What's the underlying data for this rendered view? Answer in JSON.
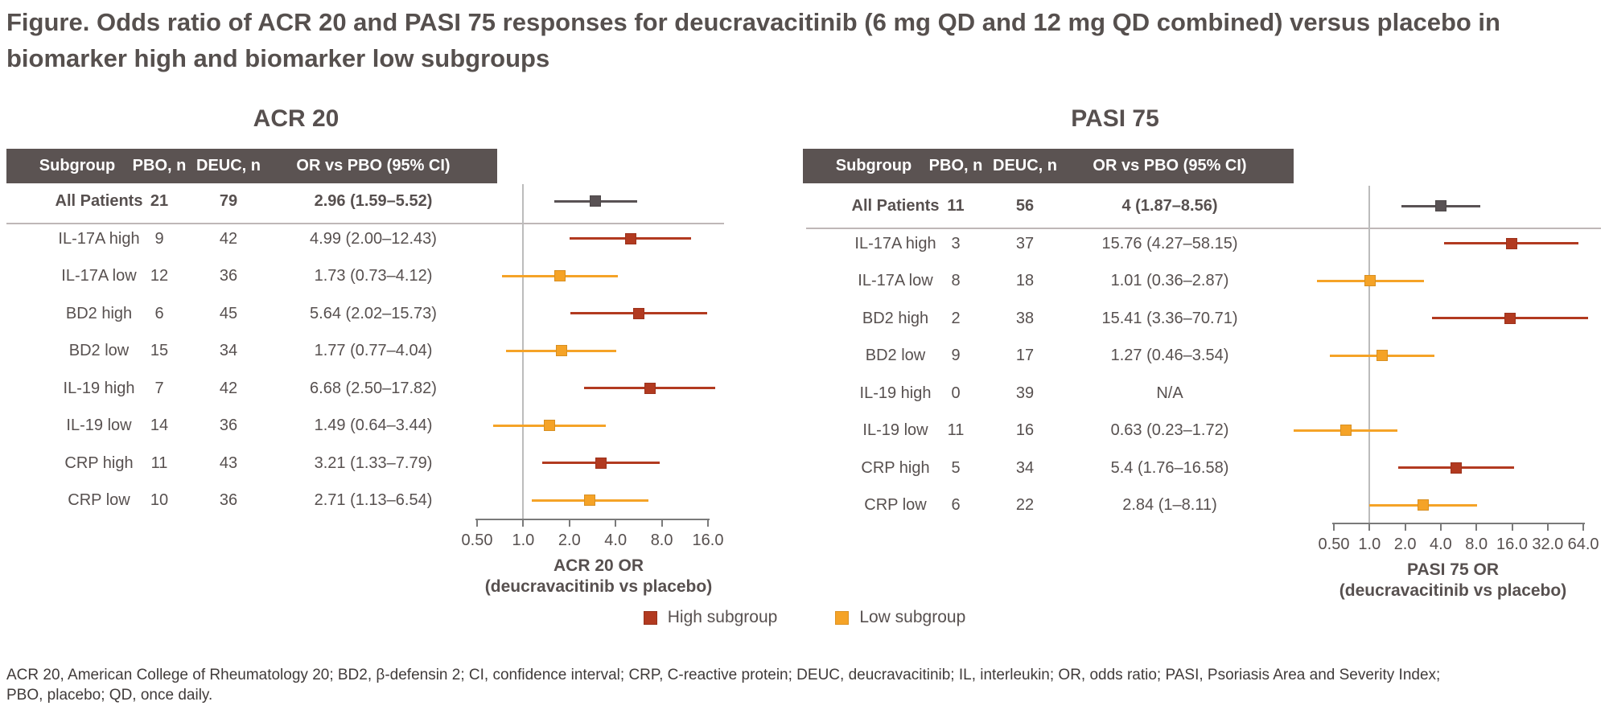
{
  "title": "Figure. Odds ratio of ACR 20 and PASI 75 responses for deucravacitinib (6 mg QD and 12 mg QD combined) versus placebo in biomarker high and biomarker low subgroups",
  "legend": {
    "high_label": "High subgroup",
    "low_label": "Low subgroup"
  },
  "footnote": {
    "line1": "ACR 20, American College of Rheumatology 20; BD2, β-defensin 2; CI, confidence interval; CRP, C-reactive protein; DEUC, deucravacitinib; IL, interleukin; OR, odds ratio; PASI, Psoriasis Area and Severity Index;",
    "line2": "PBO, placebo; QD, once daily."
  },
  "colors": {
    "high": "#B23A20",
    "low": "#F5A327",
    "all": "#595254",
    "header_bg": "#5B5352",
    "axis": "#7A7A7A",
    "ref_line": "#BCBCBC",
    "text": "#57504F"
  },
  "chart_data": [
    {
      "type": "forest",
      "title": "ACR 20",
      "columns": [
        "Subgroup",
        "PBO, n",
        "DEUC, n",
        "OR vs PBO (95% CI)"
      ],
      "axis": {
        "scale": "log2",
        "min": 0.5,
        "max": 16,
        "ref": 1.0,
        "ticks": [
          "0.50",
          "1.0",
          "2.0",
          "4.0",
          "8.0",
          "16.0"
        ],
        "tick_values": [
          0.5,
          1,
          2,
          4,
          8,
          16
        ],
        "label_line1": "ACR 20 OR",
        "label_line2": "(deucravacitinib vs placebo)"
      },
      "rows": [
        {
          "subgroup": "All Patients",
          "pbo_n": "21",
          "deuc_n": "79",
          "or_ci": "2.96 (1.59–5.52)",
          "or": 2.96,
          "ci_low": 1.59,
          "ci_high": 5.52,
          "group": "all",
          "bold": true
        },
        {
          "subgroup": "IL-17A high",
          "pbo_n": "9",
          "deuc_n": "42",
          "or_ci": "4.99 (2.00–12.43)",
          "or": 4.99,
          "ci_low": 2.0,
          "ci_high": 12.43,
          "group": "high",
          "bold": false
        },
        {
          "subgroup": "IL-17A low",
          "pbo_n": "12",
          "deuc_n": "36",
          "or_ci": "1.73 (0.73–4.12)",
          "or": 1.73,
          "ci_low": 0.73,
          "ci_high": 4.12,
          "group": "low",
          "bold": false
        },
        {
          "subgroup": "BD2 high",
          "pbo_n": "6",
          "deuc_n": "45",
          "or_ci": "5.64 (2.02–15.73)",
          "or": 5.64,
          "ci_low": 2.02,
          "ci_high": 15.73,
          "group": "high",
          "bold": false
        },
        {
          "subgroup": "BD2 low",
          "pbo_n": "15",
          "deuc_n": "34",
          "or_ci": "1.77 (0.77–4.04)",
          "or": 1.77,
          "ci_low": 0.77,
          "ci_high": 4.04,
          "group": "low",
          "bold": false
        },
        {
          "subgroup": "IL-19 high",
          "pbo_n": "7",
          "deuc_n": "42",
          "or_ci": "6.68 (2.50–17.82)",
          "or": 6.68,
          "ci_low": 2.5,
          "ci_high": 17.82,
          "group": "high",
          "bold": false
        },
        {
          "subgroup": "IL-19 low",
          "pbo_n": "14",
          "deuc_n": "36",
          "or_ci": "1.49 (0.64–3.44)",
          "or": 1.49,
          "ci_low": 0.64,
          "ci_high": 3.44,
          "group": "low",
          "bold": false
        },
        {
          "subgroup": "CRP high",
          "pbo_n": "11",
          "deuc_n": "43",
          "or_ci": "3.21 (1.33–7.79)",
          "or": 3.21,
          "ci_low": 1.33,
          "ci_high": 7.79,
          "group": "high",
          "bold": false
        },
        {
          "subgroup": "CRP low",
          "pbo_n": "10",
          "deuc_n": "36",
          "or_ci": "2.71 (1.13–6.54)",
          "or": 2.71,
          "ci_low": 1.13,
          "ci_high": 6.54,
          "group": "low",
          "bold": false
        }
      ]
    },
    {
      "type": "forest",
      "title": "PASI 75",
      "columns": [
        "Subgroup",
        "PBO, n",
        "DEUC, n",
        "OR vs PBO (95% CI)"
      ],
      "axis": {
        "scale": "log2",
        "min": 0.5,
        "max": 64,
        "ref": 1.0,
        "ticks": [
          "0.50",
          "1.0",
          "2.0",
          "4.0",
          "8.0",
          "16.0",
          "32.0",
          "64.0"
        ],
        "tick_values": [
          0.5,
          1,
          2,
          4,
          8,
          16,
          32,
          64
        ],
        "label_line1": "PASI 75 OR",
        "label_line2": "(deucravacitinib vs placebo)"
      },
      "rows": [
        {
          "subgroup": "All Patients",
          "pbo_n": "11",
          "deuc_n": "56",
          "or_ci": "4 (1.87–8.56)",
          "or": 4,
          "ci_low": 1.87,
          "ci_high": 8.56,
          "group": "all",
          "bold": true
        },
        {
          "subgroup": "IL-17A high",
          "pbo_n": "3",
          "deuc_n": "37",
          "or_ci": "15.76 (4.27–58.15)",
          "or": 15.76,
          "ci_low": 4.27,
          "ci_high": 58.15,
          "group": "high",
          "bold": false
        },
        {
          "subgroup": "IL-17A low",
          "pbo_n": "8",
          "deuc_n": "18",
          "or_ci": "1.01 (0.36–2.87)",
          "or": 1.01,
          "ci_low": 0.36,
          "ci_high": 2.87,
          "group": "low",
          "bold": false
        },
        {
          "subgroup": "BD2 high",
          "pbo_n": "2",
          "deuc_n": "38",
          "or_ci": "15.41 (3.36–70.71)",
          "or": 15.41,
          "ci_low": 3.36,
          "ci_high": 70.71,
          "group": "high",
          "bold": false
        },
        {
          "subgroup": "BD2 low",
          "pbo_n": "9",
          "deuc_n": "17",
          "or_ci": "1.27 (0.46–3.54)",
          "or": 1.27,
          "ci_low": 0.46,
          "ci_high": 3.54,
          "group": "low",
          "bold": false
        },
        {
          "subgroup": "IL-19 high",
          "pbo_n": "0",
          "deuc_n": "39",
          "or_ci": "N/A",
          "or": null,
          "ci_low": null,
          "ci_high": null,
          "group": "high",
          "bold": false
        },
        {
          "subgroup": "IL-19 low",
          "pbo_n": "11",
          "deuc_n": "16",
          "or_ci": "0.63 (0.23–1.72)",
          "or": 0.63,
          "ci_low": 0.23,
          "ci_high": 1.72,
          "group": "low",
          "bold": false
        },
        {
          "subgroup": "CRP high",
          "pbo_n": "5",
          "deuc_n": "34",
          "or_ci": "5.4 (1.76–16.58)",
          "or": 5.4,
          "ci_low": 1.76,
          "ci_high": 16.58,
          "group": "high",
          "bold": false
        },
        {
          "subgroup": "CRP low",
          "pbo_n": "6",
          "deuc_n": "22",
          "or_ci": "2.84 (1–8.11)",
          "or": 2.84,
          "ci_low": 1,
          "ci_high": 8.11,
          "group": "low",
          "bold": false
        }
      ]
    }
  ]
}
